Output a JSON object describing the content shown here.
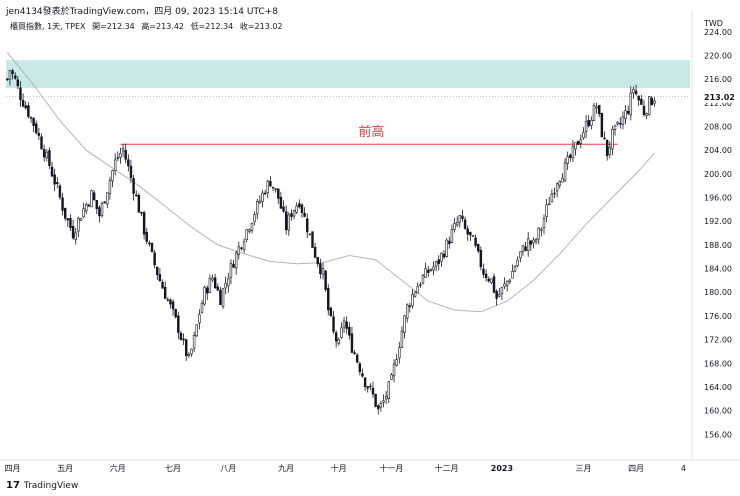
{
  "header": {
    "author_line": "jen4134發表於TradingView.com，四月 09, 2023 15:14 UTC+8",
    "symbol": "櫃買指數, 1天, TPEX",
    "open": "開=212.34",
    "high": "高=213.42",
    "low": "低=212.34",
    "close": "收=213.02"
  },
  "footer": {
    "logo_text": "17",
    "brand": "TradingView"
  },
  "colors": {
    "up": "#131722",
    "down": "#131722",
    "zone": "#b2dfdb",
    "resistance": "#f23645",
    "ma": "#b2b5be",
    "last_price_bg": "#131722"
  },
  "chart_data": {
    "type": "candlestick",
    "currency": "TWD",
    "y_ticks": [
      156,
      160,
      164,
      168,
      172,
      176,
      180,
      184,
      188,
      192,
      196,
      200,
      204,
      208,
      212,
      216,
      220,
      224
    ],
    "y_tick_labels": [
      "156.00",
      "160.00",
      "164.00",
      "168.00",
      "172.00",
      "176.00",
      "180.00",
      "184.00",
      "188.00",
      "192.00",
      "196.00",
      "200.00",
      "204.00",
      "208.00",
      "212.00",
      "216.00",
      "220.00",
      "224.00"
    ],
    "ylim": [
      152,
      227
    ],
    "x_labels": [
      {
        "label": "四月",
        "idx": 2
      },
      {
        "label": "五月",
        "idx": 22
      },
      {
        "label": "六月",
        "idx": 42
      },
      {
        "label": "七月",
        "idx": 63
      },
      {
        "label": "八月",
        "idx": 84
      },
      {
        "label": "九月",
        "idx": 106
      },
      {
        "label": "十月",
        "idx": 126
      },
      {
        "label": "十一月",
        "idx": 146
      },
      {
        "label": "十二月",
        "idx": 167
      },
      {
        "label": "2023",
        "idx": 188
      },
      {
        "label": "三月",
        "idx": 219
      },
      {
        "label": "四月",
        "idx": 239
      },
      {
        "label": "4",
        "idx": 257
      }
    ],
    "last_price": 213.02,
    "last_price_label": "213.02",
    "zone": {
      "low": 214.5,
      "high": 219.2
    },
    "resistance": {
      "value": 205.0,
      "from_idx": 43,
      "to_idx": 232,
      "label": "前高"
    },
    "keypoints": [
      [
        0,
        216.0
      ],
      [
        1,
        217.6
      ],
      [
        3,
        215.8
      ],
      [
        5,
        213.2
      ],
      [
        8,
        210.4
      ],
      [
        11,
        207.5
      ],
      [
        13,
        205.0
      ],
      [
        16,
        201.5
      ],
      [
        19,
        197.4
      ],
      [
        22,
        193.0
      ],
      [
        25,
        190.0
      ],
      [
        28,
        193.2
      ],
      [
        32,
        196.5
      ],
      [
        35,
        193.0
      ],
      [
        38,
        197.5
      ],
      [
        41,
        202.0
      ],
      [
        44,
        204.2
      ],
      [
        46,
        201.0
      ],
      [
        49,
        196.0
      ],
      [
        52,
        190.5
      ],
      [
        55,
        186.0
      ],
      [
        58,
        182.0
      ],
      [
        62,
        177.5
      ],
      [
        65,
        174.0
      ],
      [
        67,
        171.0
      ],
      [
        69,
        168.5
      ],
      [
        71,
        172.0
      ],
      [
        73,
        176.5
      ],
      [
        75,
        180.0
      ],
      [
        78,
        182.5
      ],
      [
        81,
        179.0
      ],
      [
        84,
        183.0
      ],
      [
        88,
        187.5
      ],
      [
        92,
        191.5
      ],
      [
        95,
        194.5
      ],
      [
        98,
        197.5
      ],
      [
        100,
        198.8
      ],
      [
        103,
        196.0
      ],
      [
        106,
        191.0
      ],
      [
        108,
        193.5
      ],
      [
        111,
        195.5
      ],
      [
        114,
        191.0
      ],
      [
        117,
        186.5
      ],
      [
        120,
        183.0
      ],
      [
        122,
        177.0
      ],
      [
        124,
        173.0
      ],
      [
        126,
        171.0
      ],
      [
        128,
        175.5
      ],
      [
        130,
        172.0
      ],
      [
        133,
        168.5
      ],
      [
        136,
        165.0
      ],
      [
        139,
        162.5
      ],
      [
        141,
        160.0
      ],
      [
        143,
        161.5
      ],
      [
        146,
        165.0
      ],
      [
        148,
        169.5
      ],
      [
        150,
        173.5
      ],
      [
        152,
        177.5
      ],
      [
        155,
        180.5
      ],
      [
        158,
        182.5
      ],
      [
        161,
        184.0
      ],
      [
        163,
        184.5
      ],
      [
        166,
        187.0
      ],
      [
        169,
        190.0
      ],
      [
        172,
        192.5
      ],
      [
        174,
        190.5
      ],
      [
        177,
        188.5
      ],
      [
        179,
        186.0
      ],
      [
        181,
        183.5
      ],
      [
        184,
        182.0
      ],
      [
        186,
        179.0
      ],
      [
        189,
        181.0
      ],
      [
        192,
        183.5
      ],
      [
        195,
        186.5
      ],
      [
        198,
        188.5
      ],
      [
        200,
        188.0
      ],
      [
        203,
        191.0
      ],
      [
        206,
        195.5
      ],
      [
        209,
        199.0
      ],
      [
        212,
        201.0
      ],
      [
        215,
        203.5
      ],
      [
        218,
        206.5
      ],
      [
        221,
        209.0
      ],
      [
        224,
        211.5
      ],
      [
        226,
        207.0
      ],
      [
        228,
        203.5
      ],
      [
        230,
        206.5
      ],
      [
        233,
        208.5
      ],
      [
        236,
        211.0
      ],
      [
        238,
        214.5
      ],
      [
        240,
        212.5
      ],
      [
        242,
        210.5
      ],
      [
        244,
        212.0
      ],
      [
        246,
        213.0
      ]
    ],
    "ma_points": [
      [
        0,
        220.5
      ],
      [
        10,
        215.0
      ],
      [
        20,
        209.0
      ],
      [
        30,
        204.0
      ],
      [
        40,
        201.0
      ],
      [
        50,
        198.0
      ],
      [
        60,
        194.5
      ],
      [
        70,
        191.0
      ],
      [
        80,
        188.0
      ],
      [
        90,
        186.5
      ],
      [
        100,
        185.2
      ],
      [
        110,
        184.8
      ],
      [
        120,
        185.0
      ],
      [
        130,
        186.2
      ],
      [
        140,
        185.5
      ],
      [
        150,
        182.0
      ],
      [
        160,
        178.5
      ],
      [
        170,
        177.0
      ],
      [
        180,
        176.7
      ],
      [
        190,
        178.5
      ],
      [
        200,
        182.0
      ],
      [
        210,
        186.5
      ],
      [
        220,
        191.5
      ],
      [
        230,
        196.0
      ],
      [
        240,
        200.5
      ],
      [
        246,
        203.5
      ]
    ]
  }
}
